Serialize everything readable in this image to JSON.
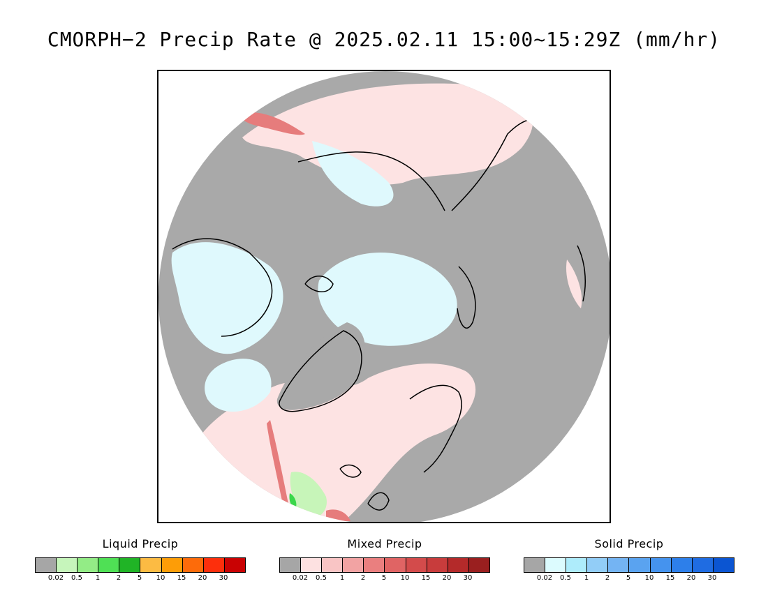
{
  "title": "CMORPH−2 Precip Rate @ 2025.02.11 15:00~15:29Z (mm/hr)",
  "map": {
    "projection": "north-polar-stereographic",
    "colors": {
      "no_precip": "#a9a9a9",
      "mixed_light": "#fde3e3",
      "solid_light": "#dff9fd",
      "mixed_heavy": "#e67c7c",
      "liquid_light": "#c7f5b9",
      "liquid_heavy": "#3ad74a",
      "coastline": "#000000"
    }
  },
  "legends": [
    {
      "title": "Liquid Precip",
      "colors": [
        "#a6a6a6",
        "#c6f5bb",
        "#93ec86",
        "#4fe055",
        "#20b426",
        "#fcbb43",
        "#fd9d07",
        "#fd6b0a",
        "#fd2f0c",
        "#c90203"
      ],
      "ticks": [
        "0.02",
        "0.5",
        "1",
        "2",
        "5",
        "10",
        "15",
        "20",
        "30"
      ]
    },
    {
      "title": "Mixed Precip",
      "colors": [
        "#a6a6a6",
        "#fde1e1",
        "#f9c5c5",
        "#f2a3a3",
        "#ea7f7f",
        "#e06464",
        "#d34b4b",
        "#c83c3c",
        "#b42a2a",
        "#9a1f1f"
      ],
      "ticks": [
        "0.02",
        "0.5",
        "1",
        "2",
        "5",
        "10",
        "15",
        "20",
        "30"
      ]
    },
    {
      "title": "Solid Precip",
      "colors": [
        "#a6a6a6",
        "#dcfbfe",
        "#aeecfb",
        "#92cdf7",
        "#74b4f3",
        "#5aa3f0",
        "#4593ee",
        "#2d7fea",
        "#1f6ce2",
        "#0b55d2"
      ],
      "ticks": [
        "0.02",
        "0.5",
        "1",
        "2",
        "5",
        "10",
        "15",
        "20",
        "30"
      ]
    }
  ]
}
